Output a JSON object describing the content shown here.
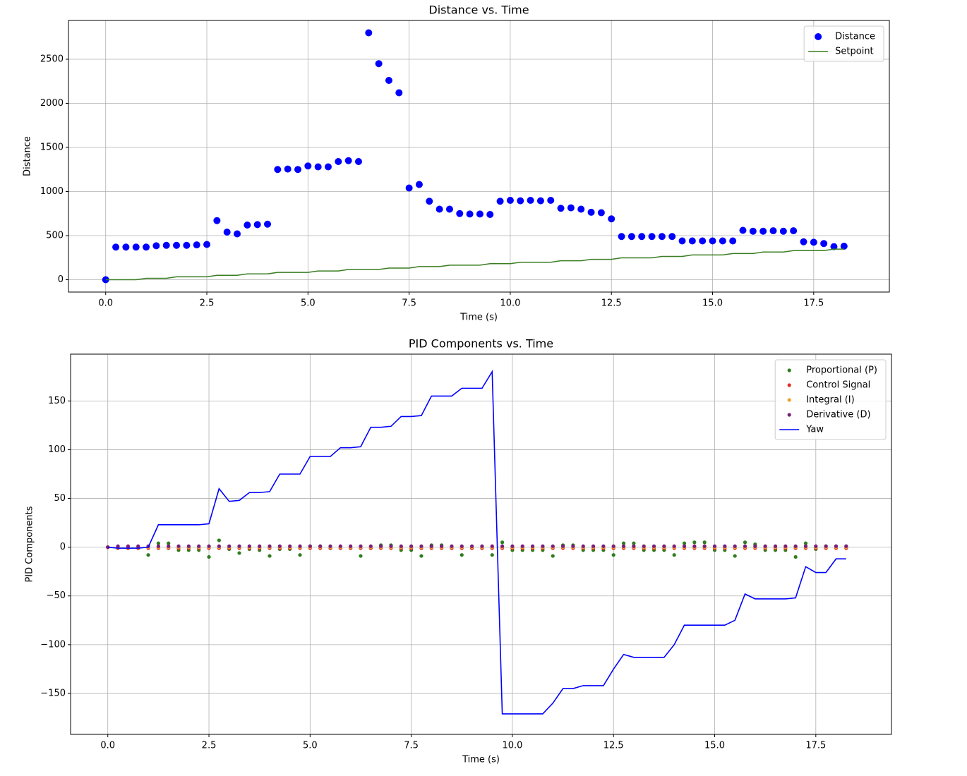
{
  "chart_data": [
    {
      "type": "combo",
      "title": "Distance vs. Time",
      "x_label": "Time (s)",
      "y_label": "Distance",
      "x": [
        0,
        0.25,
        0.5,
        0.75,
        1,
        1.25,
        1.5,
        1.75,
        2,
        2.25,
        2.5,
        2.75,
        3,
        3.25,
        3.5,
        3.75,
        4,
        4.25,
        4.5,
        4.75,
        5,
        5.25,
        5.5,
        5.75,
        6,
        6.25,
        6.5,
        6.75,
        7,
        7.25,
        7.5,
        7.75,
        8,
        8.25,
        8.5,
        8.75,
        9,
        9.25,
        9.5,
        9.75,
        10,
        10.25,
        10.5,
        10.75,
        11,
        11.25,
        11.5,
        11.75,
        12,
        12.25,
        12.5,
        12.75,
        13,
        13.25,
        13.5,
        13.75,
        14,
        14.25,
        14.5,
        14.75,
        15,
        15.25,
        15.5,
        15.75,
        16,
        16.25,
        16.5,
        16.75,
        17,
        17.25,
        17.5,
        17.75,
        18,
        18.25
      ],
      "series": [
        {
          "name": "Distance",
          "type": "scatter",
          "color": "#0000ff",
          "values": [
            0,
            370,
            370,
            370,
            370,
            385,
            390,
            390,
            390,
            395,
            400,
            670,
            540,
            520,
            620,
            625,
            630,
            1250,
            1255,
            1250,
            1290,
            1280,
            1280,
            1340,
            1350,
            1340,
            2800,
            2450,
            2260,
            2120,
            1040,
            1080,
            890,
            800,
            800,
            750,
            745,
            745,
            740,
            890,
            900,
            895,
            900,
            895,
            900,
            810,
            815,
            800,
            765,
            760,
            690,
            490,
            490,
            490,
            490,
            490,
            490,
            440,
            440,
            440,
            440,
            440,
            440,
            560,
            550,
            550,
            555,
            550,
            555,
            430,
            425,
            410,
            375,
            380
          ]
        },
        {
          "name": "Setpoint",
          "type": "line",
          "color": "#3a7d22",
          "values": [
            0,
            0,
            0,
            0,
            16,
            16,
            16,
            33,
            33,
            33,
            33,
            50,
            50,
            50,
            66,
            66,
            66,
            83,
            83,
            83,
            83,
            99,
            99,
            99,
            116,
            116,
            116,
            116,
            132,
            132,
            132,
            149,
            149,
            149,
            165,
            165,
            165,
            165,
            182,
            182,
            182,
            198,
            198,
            198,
            198,
            215,
            215,
            215,
            231,
            231,
            231,
            248,
            248,
            248,
            248,
            264,
            264,
            264,
            281,
            281,
            281,
            281,
            297,
            297,
            297,
            314,
            314,
            314,
            330,
            330,
            330,
            330,
            347,
            347
          ]
        }
      ],
      "xlim": [
        -0.92,
        19.37
      ],
      "ylim": [
        -140,
        2940
      ],
      "xticks": [
        {
          "value": 0,
          "label": "0.0"
        },
        2.5,
        {
          "value": 5,
          "label": "5.0"
        },
        7.5,
        {
          "value": 10,
          "label": "10.0"
        },
        12.5,
        {
          "value": 15,
          "label": "15.0"
        },
        17.5
      ],
      "yticks": [
        0,
        500,
        1000,
        1500,
        2000,
        2500
      ],
      "grid": true,
      "legend": "upper right"
    },
    {
      "type": "combo",
      "title": "PID Components vs. Time",
      "x_label": "Time (s)",
      "y_label": "PID Components",
      "x": [
        0,
        0.25,
        0.5,
        0.75,
        1,
        1.25,
        1.5,
        1.75,
        2,
        2.25,
        2.5,
        2.75,
        3,
        3.25,
        3.5,
        3.75,
        4,
        4.25,
        4.5,
        4.75,
        5,
        5.25,
        5.5,
        5.75,
        6,
        6.25,
        6.5,
        6.75,
        7,
        7.25,
        7.5,
        7.75,
        8,
        8.25,
        8.5,
        8.75,
        9,
        9.25,
        9.5,
        9.75,
        10,
        10.25,
        10.5,
        10.75,
        11,
        11.25,
        11.5,
        11.75,
        12,
        12.25,
        12.5,
        12.75,
        13,
        13.25,
        13.5,
        13.75,
        14,
        14.25,
        14.5,
        14.75,
        15,
        15.25,
        15.5,
        15.75,
        16,
        16.25,
        16.5,
        16.75,
        17,
        17.25,
        17.5,
        17.75,
        18,
        18.25
      ],
      "series": [
        {
          "name": "Proportional (P)",
          "type": "scatter",
          "color": "#2e7d1f",
          "values": [
            0,
            -1,
            -1,
            -1,
            -8,
            4,
            4,
            -3,
            -3,
            -3,
            -10,
            7,
            -2,
            -6,
            -2,
            -3,
            -9,
            -2,
            -2,
            -8,
            1,
            1,
            -1,
            -1,
            -1,
            -9,
            -1,
            2,
            2,
            -3,
            -3,
            -9,
            2,
            2,
            -1,
            -8,
            -1,
            -1,
            -8,
            5,
            -3,
            -3,
            -3,
            -3,
            -9,
            2,
            2,
            -3,
            -3,
            -3,
            -8,
            4,
            4,
            -3,
            -3,
            -3,
            -8,
            4,
            5,
            5,
            -3,
            -3,
            -9,
            5,
            3,
            -3,
            -3,
            -3,
            -10,
            4,
            -2,
            1,
            1,
            1
          ]
        },
        {
          "name": "Control Signal",
          "type": "scatter",
          "color": "#e0301e",
          "values": [
            0,
            -1,
            -1,
            -1,
            -1,
            -1,
            -1,
            -1,
            -1,
            -1,
            -1,
            -1,
            -1,
            -1,
            -1,
            -1,
            -1,
            -1,
            -1,
            -1,
            -1,
            -1,
            -1,
            -1,
            -1,
            -1,
            -1,
            -1,
            -1,
            -1,
            -1,
            -1,
            -1,
            -1,
            -1,
            -1,
            -1,
            -1,
            -1,
            -1,
            -1,
            -1,
            -1,
            -1,
            -1,
            -1,
            -1,
            -1,
            -1,
            -1,
            -1,
            -1,
            -1,
            -1,
            -1,
            -1,
            -1,
            -1,
            -1,
            -1,
            -1,
            -1,
            -1,
            -1,
            -1,
            -1,
            -1,
            -1,
            -1,
            -1,
            -1,
            -1,
            -1,
            -1
          ]
        },
        {
          "name": "Integral (I)",
          "type": "scatter",
          "color": "#f0a030",
          "values": [
            0,
            0,
            0,
            0,
            0,
            0,
            0,
            0,
            0,
            0,
            0,
            0,
            0,
            0,
            0,
            0,
            0,
            0,
            0,
            0,
            0,
            0,
            0,
            0,
            0,
            0,
            0,
            0,
            0,
            0,
            0,
            0,
            0,
            0,
            0,
            0,
            0,
            0,
            0,
            0,
            0,
            0,
            0,
            0,
            0,
            0,
            0,
            0,
            0,
            0,
            0,
            0,
            0,
            0,
            0,
            0,
            0,
            0,
            0,
            0,
            0,
            0,
            0,
            0,
            0,
            0,
            0,
            0,
            0,
            0,
            0,
            0,
            0,
            0
          ]
        },
        {
          "name": "Derivative (D)",
          "type": "scatter",
          "color": "#7a1f7a",
          "values": [
            0,
            1,
            1,
            1,
            1,
            1,
            1,
            1,
            1,
            1,
            1,
            1,
            1,
            1,
            1,
            1,
            1,
            1,
            1,
            1,
            1,
            1,
            1,
            1,
            1,
            1,
            1,
            1,
            1,
            1,
            1,
            1,
            1,
            1,
            1,
            1,
            1,
            1,
            1,
            1,
            1,
            1,
            1,
            1,
            1,
            1,
            1,
            1,
            1,
            1,
            1,
            1,
            1,
            1,
            1,
            1,
            1,
            1,
            1,
            1,
            1,
            1,
            1,
            1,
            1,
            1,
            1,
            1,
            1,
            1,
            1,
            1,
            1,
            1
          ]
        },
        {
          "name": "Yaw",
          "type": "line",
          "color": "#0000ff",
          "values": [
            0,
            -1,
            -1,
            -1,
            0,
            23,
            23,
            23,
            23,
            23,
            24,
            60,
            47,
            48,
            56,
            56,
            57,
            75,
            75,
            75,
            93,
            93,
            93,
            102,
            102,
            103,
            123,
            123,
            124,
            134,
            134,
            135,
            155,
            155,
            155,
            163,
            163,
            163,
            180,
            -171,
            -171,
            -171,
            -171,
            -171,
            -160,
            -145,
            -145,
            -142,
            -142,
            -142,
            -125,
            -110,
            -113,
            -113,
            -113,
            -113,
            -100,
            -80,
            -80,
            -80,
            -80,
            -80,
            -75,
            -48,
            -53,
            -53,
            -53,
            -53,
            -52,
            -20,
            -26,
            -26,
            -12,
            -12
          ]
        }
      ],
      "xlim": [
        -0.92,
        19.37
      ],
      "ylim": [
        -192,
        198
      ],
      "xticks": [
        {
          "value": 0,
          "label": "0.0"
        },
        2.5,
        {
          "value": 5,
          "label": "5.0"
        },
        7.5,
        {
          "value": 10,
          "label": "10.0"
        },
        12.5,
        {
          "value": 15,
          "label": "15.0"
        },
        17.5
      ],
      "yticks": [
        {
          "value": -150,
          "label": "−150"
        },
        {
          "value": -100,
          "label": "−100"
        },
        {
          "value": -50,
          "label": "−50"
        },
        0,
        50,
        100,
        150
      ],
      "grid": true,
      "legend": "upper right"
    }
  ]
}
